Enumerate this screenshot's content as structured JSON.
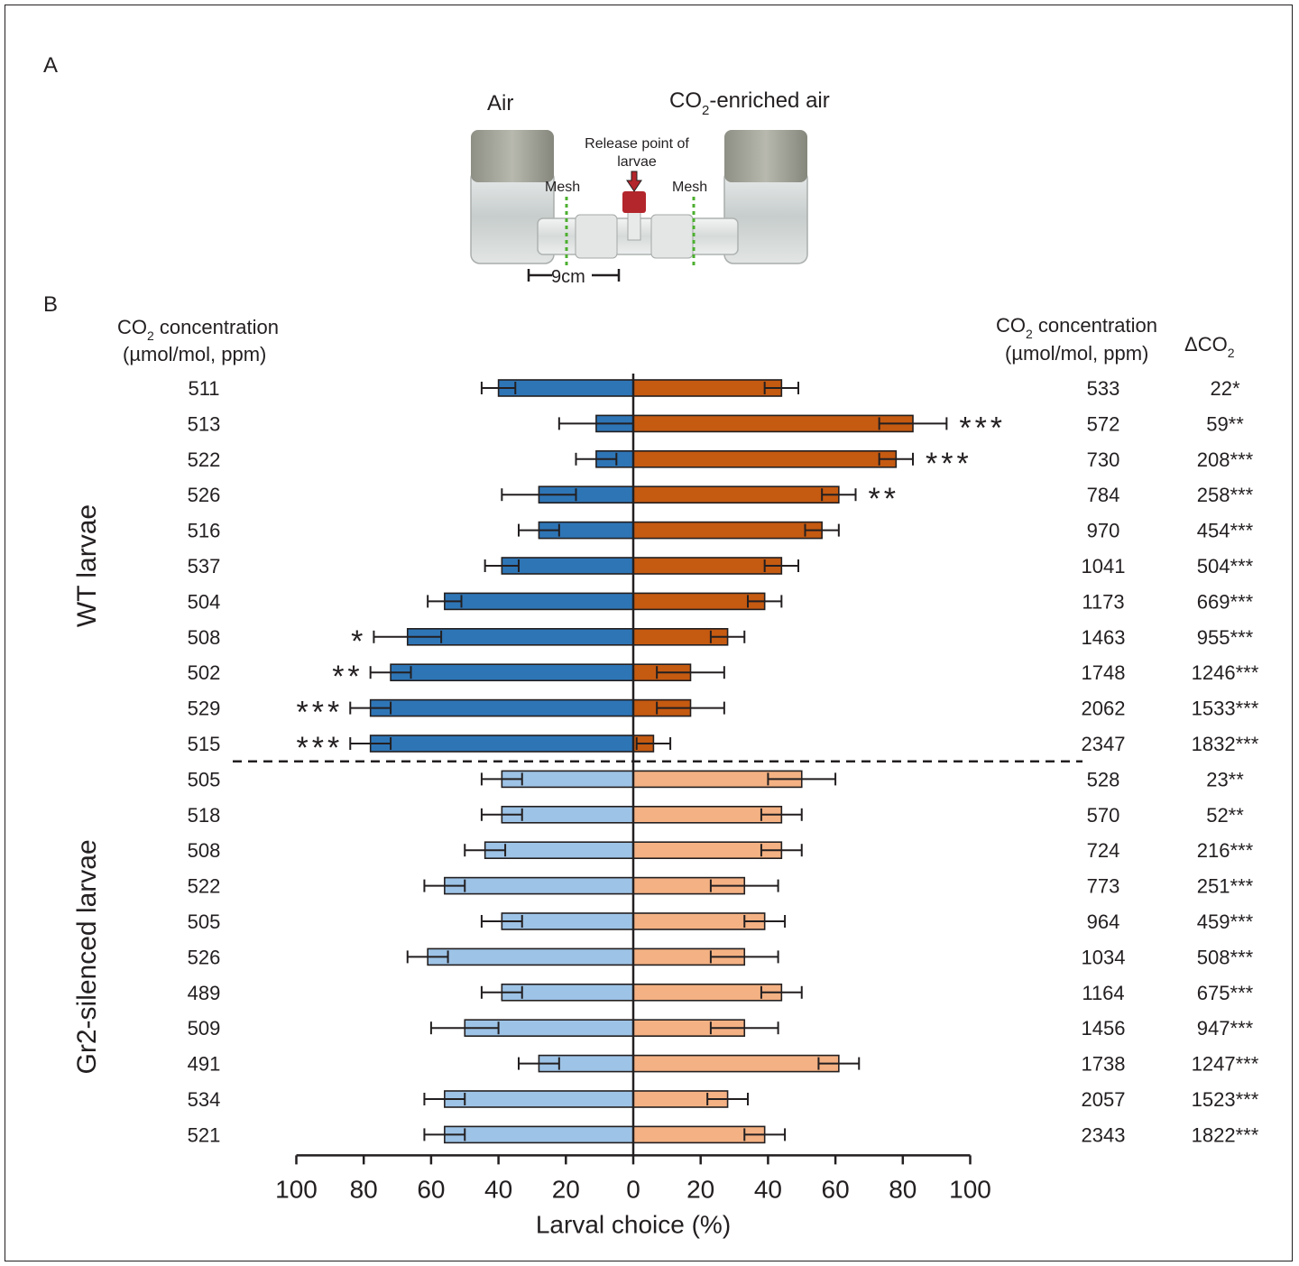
{
  "panel_a": {
    "label": "A",
    "left_label": "Air",
    "right_label_prefix": "CO",
    "right_label_sub": "2",
    "right_label_suffix": "-enriched air",
    "release_label_line1": "Release point of",
    "release_label_line2": "larvae",
    "mesh_left": "Mesh",
    "mesh_right": "Mesh",
    "scale_label": "9cm",
    "photo_kind": "glass Y-tube olfactometer photograph"
  },
  "panel_b": {
    "label": "B",
    "left_header_line1_prefix": "CO",
    "left_header_line1_sub": "2",
    "left_header_line1_suffix": " concentration",
    "left_header_line2": "(µmol/mol, ppm)",
    "right_header_line1_prefix": "CO",
    "right_header_line1_sub": "2",
    "right_header_line1_suffix": " concentration",
    "right_header_line2": "(µmol/mol, ppm)",
    "delta_header_prefix": "ΔCO",
    "delta_header_sub": "2"
  },
  "chart_data": {
    "type": "bar",
    "orientation": "horizontal",
    "xlabel": "Larval choice (%)",
    "x_ticks": [
      "100",
      "80",
      "60",
      "40",
      "20",
      "0",
      "20",
      "40",
      "60",
      "80",
      "100"
    ],
    "xlim": [
      -100,
      100
    ],
    "grid": false,
    "colors": {
      "wt_air": "#2e75b6",
      "wt_co2": "#c55a11",
      "gr2_air": "#9dc3e6",
      "gr2_co2": "#f4b183",
      "axis": "#231f20"
    },
    "groups": [
      {
        "name": "WT larvae",
        "rows": [
          {
            "air_ppm": "511",
            "co2_ppm": "533",
            "delta": "22*",
            "air_pct": 40,
            "air_err": 5,
            "co2_pct": 44,
            "co2_err": 5,
            "air_sig": "",
            "co2_sig": ""
          },
          {
            "air_ppm": "513",
            "co2_ppm": "572",
            "delta": "59**",
            "air_pct": 11,
            "air_err": 11,
            "co2_pct": 83,
            "co2_err": 10,
            "air_sig": "",
            "co2_sig": "***"
          },
          {
            "air_ppm": "522",
            "co2_ppm": "730",
            "delta": "208***",
            "air_pct": 11,
            "air_err": 6,
            "co2_pct": 78,
            "co2_err": 5,
            "air_sig": "",
            "co2_sig": "***"
          },
          {
            "air_ppm": "526",
            "co2_ppm": "784",
            "delta": "258***",
            "air_pct": 28,
            "air_err": 11,
            "co2_pct": 61,
            "co2_err": 5,
            "air_sig": "",
            "co2_sig": "**"
          },
          {
            "air_ppm": "516",
            "co2_ppm": "970",
            "delta": "454***",
            "air_pct": 28,
            "air_err": 6,
            "co2_pct": 56,
            "co2_err": 5,
            "air_sig": "",
            "co2_sig": ""
          },
          {
            "air_ppm": "537",
            "co2_ppm": "1041",
            "delta": "504***",
            "air_pct": 39,
            "air_err": 5,
            "co2_pct": 44,
            "co2_err": 5,
            "air_sig": "",
            "co2_sig": ""
          },
          {
            "air_ppm": "504",
            "co2_ppm": "1173",
            "delta": "669***",
            "air_pct": 56,
            "air_err": 5,
            "co2_pct": 39,
            "co2_err": 5,
            "air_sig": "",
            "co2_sig": ""
          },
          {
            "air_ppm": "508",
            "co2_ppm": "1463",
            "delta": "955***",
            "air_pct": 67,
            "air_err": 10,
            "co2_pct": 28,
            "co2_err": 5,
            "air_sig": "*",
            "co2_sig": ""
          },
          {
            "air_ppm": "502",
            "co2_ppm": "1748",
            "delta": "1246***",
            "air_pct": 72,
            "air_err": 6,
            "co2_pct": 17,
            "co2_err": 10,
            "air_sig": "**",
            "co2_sig": ""
          },
          {
            "air_ppm": "529",
            "co2_ppm": "2062",
            "delta": "1533***",
            "air_pct": 78,
            "air_err": 6,
            "co2_pct": 17,
            "co2_err": 10,
            "air_sig": "***",
            "co2_sig": ""
          },
          {
            "air_ppm": "515",
            "co2_ppm": "2347",
            "delta": "1832***",
            "air_pct": 78,
            "air_err": 6,
            "co2_pct": 6,
            "co2_err": 5,
            "air_sig": "***",
            "co2_sig": ""
          }
        ]
      },
      {
        "name": "Gr2-silenced larvae",
        "rows": [
          {
            "air_ppm": "505",
            "co2_ppm": "528",
            "delta": "23**",
            "air_pct": 39,
            "air_err": 6,
            "co2_pct": 50,
            "co2_err": 10,
            "air_sig": "",
            "co2_sig": ""
          },
          {
            "air_ppm": "518",
            "co2_ppm": "570",
            "delta": "52**",
            "air_pct": 39,
            "air_err": 6,
            "co2_pct": 44,
            "co2_err": 6,
            "air_sig": "",
            "co2_sig": ""
          },
          {
            "air_ppm": "508",
            "co2_ppm": "724",
            "delta": "216***",
            "air_pct": 44,
            "air_err": 6,
            "co2_pct": 44,
            "co2_err": 6,
            "air_sig": "",
            "co2_sig": ""
          },
          {
            "air_ppm": "522",
            "co2_ppm": "773",
            "delta": "251***",
            "air_pct": 56,
            "air_err": 6,
            "co2_pct": 33,
            "co2_err": 10,
            "air_sig": "",
            "co2_sig": ""
          },
          {
            "air_ppm": "505",
            "co2_ppm": "964",
            "delta": "459***",
            "air_pct": 39,
            "air_err": 6,
            "co2_pct": 39,
            "co2_err": 6,
            "air_sig": "",
            "co2_sig": ""
          },
          {
            "air_ppm": "526",
            "co2_ppm": "1034",
            "delta": "508***",
            "air_pct": 61,
            "air_err": 6,
            "co2_pct": 33,
            "co2_err": 10,
            "air_sig": "",
            "co2_sig": ""
          },
          {
            "air_ppm": "489",
            "co2_ppm": "1164",
            "delta": "675***",
            "air_pct": 39,
            "air_err": 6,
            "co2_pct": 44,
            "co2_err": 6,
            "air_sig": "",
            "co2_sig": ""
          },
          {
            "air_ppm": "509",
            "co2_ppm": "1456",
            "delta": "947***",
            "air_pct": 50,
            "air_err": 10,
            "co2_pct": 33,
            "co2_err": 10,
            "air_sig": "",
            "co2_sig": ""
          },
          {
            "air_ppm": "491",
            "co2_ppm": "1738",
            "delta": "1247***",
            "air_pct": 28,
            "air_err": 6,
            "co2_pct": 61,
            "co2_err": 6,
            "air_sig": "",
            "co2_sig": ""
          },
          {
            "air_ppm": "534",
            "co2_ppm": "2057",
            "delta": "1523***",
            "air_pct": 56,
            "air_err": 6,
            "co2_pct": 28,
            "co2_err": 6,
            "air_sig": "",
            "co2_sig": ""
          },
          {
            "air_ppm": "521",
            "co2_ppm": "2343",
            "delta": "1822***",
            "air_pct": 56,
            "air_err": 6,
            "co2_pct": 39,
            "co2_err": 6,
            "air_sig": "",
            "co2_sig": ""
          }
        ]
      }
    ]
  }
}
